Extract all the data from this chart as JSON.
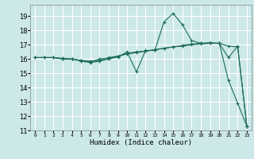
{
  "xlabel": "Humidex (Indice chaleur)",
  "ylabel": "",
  "bg_color": "#cce8e8",
  "grid_color": "#ffffff",
  "line_color": "#1a6b5a",
  "xlim": [
    -0.5,
    23.5
  ],
  "ylim": [
    11,
    19.8
  ],
  "yticks": [
    11,
    12,
    13,
    14,
    15,
    16,
    17,
    18,
    19
  ],
  "xticks": [
    0,
    1,
    2,
    3,
    4,
    5,
    6,
    7,
    8,
    9,
    10,
    11,
    12,
    13,
    14,
    15,
    16,
    17,
    18,
    19,
    20,
    21,
    22,
    23
  ],
  "line1_x": [
    0,
    1,
    2,
    3,
    4,
    5,
    6,
    7,
    8,
    9,
    10,
    11,
    12,
    13,
    14,
    15,
    16,
    17,
    18,
    19,
    20,
    21,
    22,
    23
  ],
  "line1_y": [
    16.1,
    16.1,
    16.1,
    16.0,
    16.0,
    15.9,
    15.85,
    15.9,
    16.1,
    16.2,
    16.35,
    16.45,
    16.55,
    16.65,
    16.75,
    16.85,
    16.9,
    17.0,
    17.05,
    17.1,
    17.1,
    16.9,
    16.85,
    11.3
  ],
  "line2_x": [
    0,
    1,
    2,
    3,
    4,
    5,
    6,
    7,
    8,
    9,
    10,
    11,
    12,
    13,
    14,
    15,
    16,
    17,
    18,
    19,
    20,
    21,
    22,
    23
  ],
  "line2_y": [
    16.1,
    16.1,
    16.1,
    16.0,
    16.0,
    15.85,
    15.75,
    15.85,
    16.0,
    16.15,
    16.5,
    15.1,
    16.6,
    16.6,
    18.6,
    19.2,
    18.4,
    17.3,
    17.1,
    17.1,
    17.1,
    14.5,
    12.9,
    11.3
  ],
  "line3_x": [
    0,
    1,
    2,
    3,
    4,
    5,
    6,
    7,
    8,
    9,
    10,
    11,
    12,
    13,
    14,
    15,
    16,
    17,
    18,
    19,
    20,
    21,
    22,
    23
  ],
  "line3_y": [
    16.1,
    16.1,
    16.1,
    16.05,
    16.0,
    15.9,
    15.8,
    16.0,
    16.05,
    16.2,
    16.4,
    16.5,
    16.55,
    16.65,
    16.75,
    16.85,
    16.95,
    17.05,
    17.1,
    17.15,
    17.1,
    16.1,
    16.9,
    11.3
  ]
}
